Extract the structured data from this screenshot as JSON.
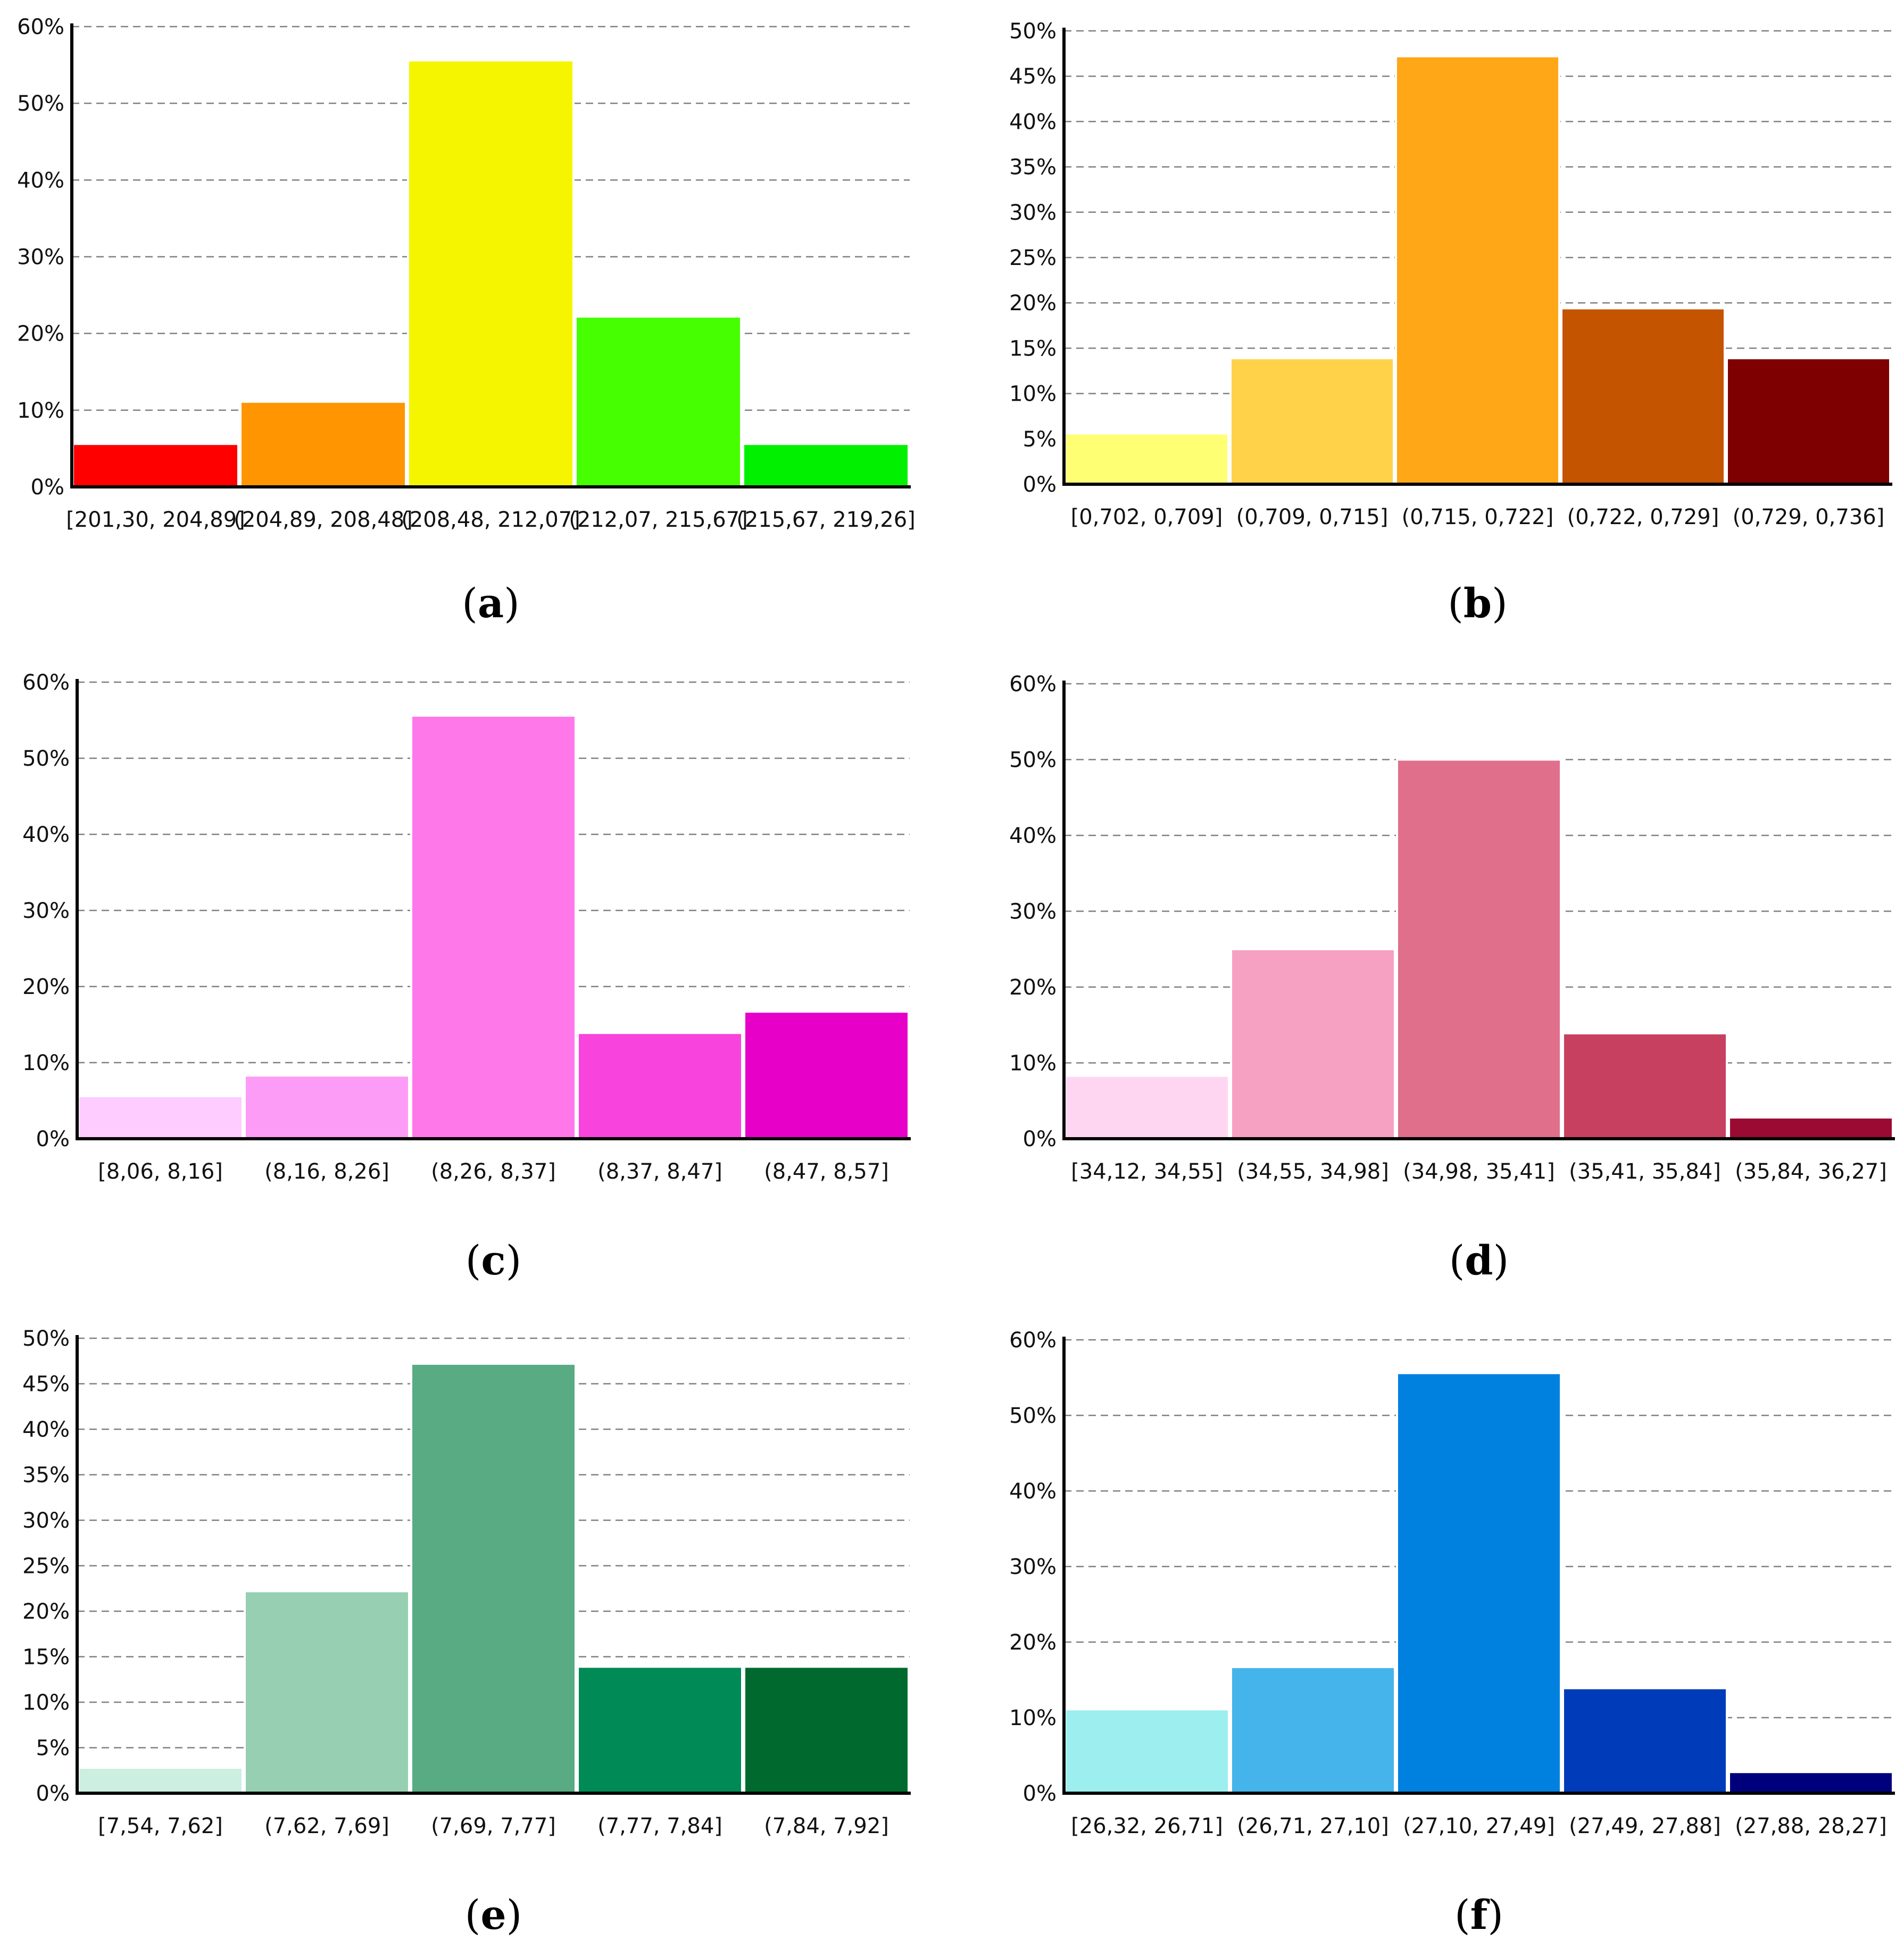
{
  "figure": {
    "panels": [
      {
        "caption_letter": "a"
      },
      {
        "caption_letter": "b"
      },
      {
        "caption_letter": "c"
      },
      {
        "caption_letter": "d"
      },
      {
        "caption_letter": "e"
      },
      {
        "caption_letter": "f"
      }
    ]
  },
  "chart_data": [
    {
      "type": "bar",
      "caption": "(a)",
      "categories": [
        "[201,30, 204,89]",
        "(204,89, 208,48]",
        "(208,48, 212,07]",
        "(212,07, 215,67]",
        "(215,67, 219,26]"
      ],
      "values": [
        5.6,
        11.1,
        55.6,
        22.2,
        5.6
      ],
      "colors": [
        "#ff0000",
        "#ff9500",
        "#f5f500",
        "#46ff00",
        "#00f000"
      ],
      "yticks": [
        "0%",
        "10%",
        "20%",
        "30%",
        "40%",
        "50%",
        "60%"
      ],
      "ylim": [
        0,
        60
      ],
      "grid": true
    },
    {
      "type": "bar",
      "caption": "(b)",
      "categories": [
        "[0,702, 0,709]",
        "(0,709, 0,715]",
        "(0,715, 0,722]",
        "(0,722, 0,729]",
        "(0,729, 0,736]"
      ],
      "values": [
        5.6,
        13.9,
        47.2,
        19.4,
        13.9
      ],
      "colors": [
        "#ffff73",
        "#ffd24a",
        "#ffa716",
        "#c45400",
        "#7e0000"
      ],
      "yticks": [
        "0%",
        "5%",
        "10%",
        "15%",
        "20%",
        "25%",
        "30%",
        "35%",
        "40%",
        "45%",
        "50%"
      ],
      "ylim": [
        0,
        50
      ],
      "grid": true
    },
    {
      "type": "bar",
      "caption": "(c)",
      "categories": [
        "[8,06, 8,16]",
        "(8,16, 8,26]",
        "(8,26, 8,37]",
        "(8,37, 8,47]",
        "(8,47, 8,57]"
      ],
      "values": [
        5.6,
        8.3,
        55.6,
        13.9,
        16.7
      ],
      "colors": [
        "#ffccff",
        "#fd9cf6",
        "#ff78ea",
        "#f844dd",
        "#e600c8"
      ],
      "yticks": [
        "0%",
        "10%",
        "20%",
        "30%",
        "40%",
        "50%",
        "60%"
      ],
      "ylim": [
        0,
        60
      ],
      "grid": true
    },
    {
      "type": "bar",
      "caption": "(d)",
      "categories": [
        "[34,12, 34,55]",
        "(34,55, 34,98]",
        "(34,98, 35,41]",
        "(35,41, 35,84]",
        "(35,84, 36,27]"
      ],
      "values": [
        8.3,
        25.0,
        50.0,
        13.9,
        2.8
      ],
      "colors": [
        "#ffd6f2",
        "#f6a1c1",
        "#e06f8c",
        "#c7405f",
        "#9a0a33"
      ],
      "yticks": [
        "0%",
        "10%",
        "20%",
        "30%",
        "40%",
        "50%",
        "60%"
      ],
      "ylim": [
        0,
        60
      ],
      "grid": true
    },
    {
      "type": "bar",
      "caption": "(e)",
      "categories": [
        "[7,54, 7,62]",
        "(7,62, 7,69]",
        "(7,69, 7,77]",
        "(7,77, 7,84]",
        "(7,84, 7,92]"
      ],
      "values": [
        2.8,
        22.2,
        47.2,
        13.9,
        13.9
      ],
      "colors": [
        "#ccefe2",
        "#96cfb2",
        "#58ab83",
        "#008a56",
        "#006a2e"
      ],
      "yticks": [
        "0%",
        "5%",
        "10%",
        "15%",
        "20%",
        "25%",
        "30%",
        "35%",
        "40%",
        "45%",
        "50%"
      ],
      "ylim": [
        0,
        50
      ],
      "grid": true
    },
    {
      "type": "bar",
      "caption": "(f)",
      "categories": [
        "[26,32, 26,71]",
        "(26,71, 27,10]",
        "(27,10, 27,49]",
        "(27,49, 27,88]",
        "(27,88, 28,27]"
      ],
      "values": [
        11.1,
        16.7,
        55.6,
        13.9,
        2.8
      ],
      "colors": [
        "#9deeee",
        "#45b4ea",
        "#0081e0",
        "#003cb9",
        "#00007c"
      ],
      "yticks": [
        "0%",
        "10%",
        "20%",
        "30%",
        "40%",
        "50%",
        "60%"
      ],
      "ylim": [
        0,
        60
      ],
      "grid": true
    }
  ]
}
